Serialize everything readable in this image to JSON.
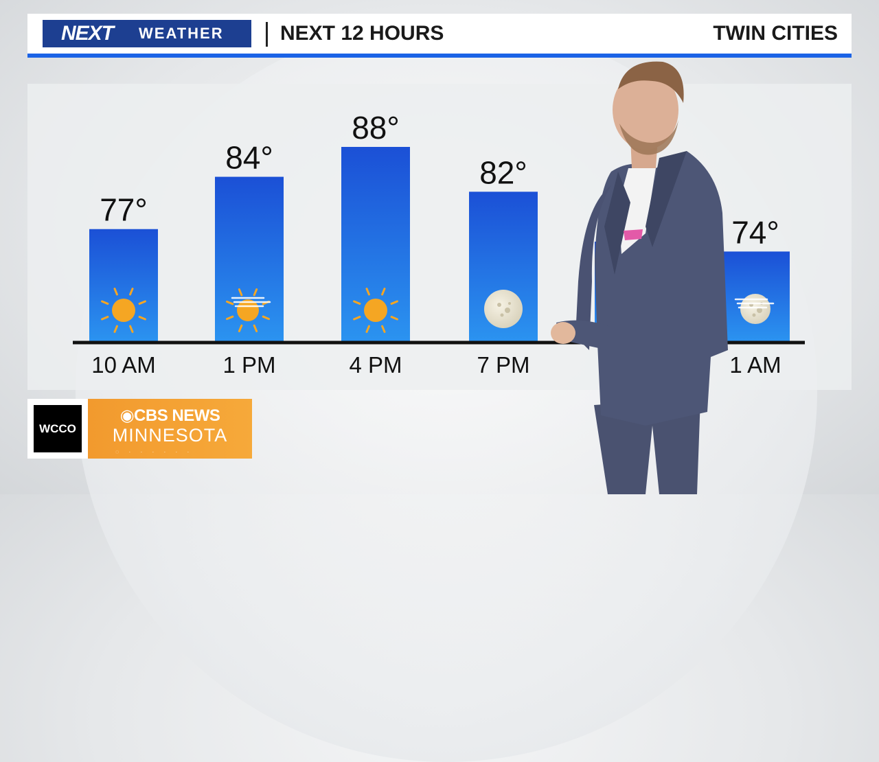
{
  "header": {
    "logo_next": "NEXT",
    "logo_weather": "WEATHER",
    "title": "NEXT 12 HOURS",
    "location": "TWIN CITIES"
  },
  "chart_data": {
    "type": "bar",
    "categories": [
      "10 AM",
      "1 PM",
      "4 PM",
      "7 PM",
      "",
      "1 AM"
    ],
    "values": [
      77,
      84,
      88,
      82,
      null,
      74
    ],
    "value_labels": [
      "77°",
      "84°",
      "88°",
      "82°",
      "",
      "74°"
    ],
    "icons": [
      "sun-icon",
      "partly-hazy-sun-icon",
      "sun-icon",
      "moon-icon",
      "",
      "hazy-moon-icon"
    ],
    "title": "NEXT 12 HOURS",
    "xlabel": "",
    "ylabel": "",
    "ylim": [
      60,
      90
    ],
    "grid": false,
    "colors": {
      "bar_top": "#1b50d6",
      "bar_bottom": "#2a8fee",
      "sun": "#f5a623",
      "moon": "#ece6d4",
      "axis": "#111111"
    }
  },
  "bug": {
    "station": "WCCO",
    "network": "CBS NEWS",
    "region": "MINNESOTA"
  }
}
